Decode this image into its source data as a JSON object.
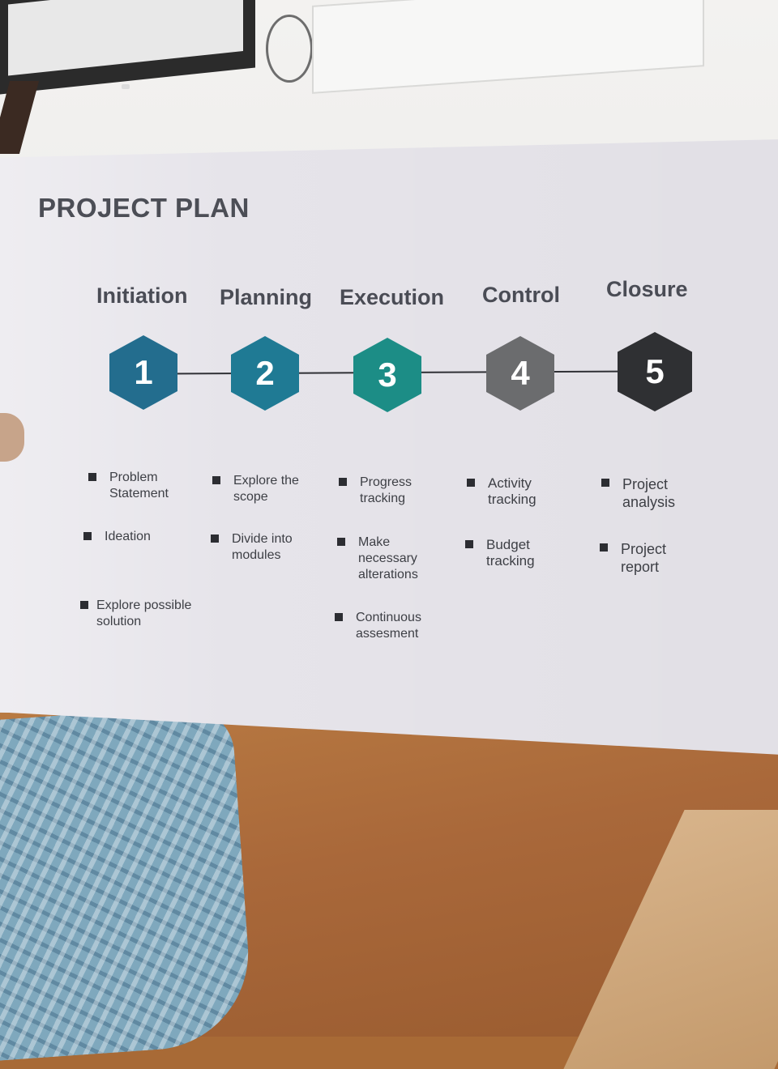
{
  "title": "PROJECT PLAN",
  "phases": [
    {
      "label": "Initiation",
      "number": "1",
      "color": "#236d8e",
      "items": [
        "Problem Statement",
        "Ideation",
        "Explore possible solution"
      ]
    },
    {
      "label": "Planning",
      "number": "2",
      "color": "#1f7a94",
      "items": [
        "Explore the scope",
        "Divide into modules"
      ]
    },
    {
      "label": "Execution",
      "number": "3",
      "color": "#1c8d86",
      "items": [
        "Progress tracking",
        "Make necessary alterations",
        "Continuous assesment"
      ]
    },
    {
      "label": "Control",
      "number": "4",
      "color": "#6b6c6e",
      "items": [
        "Activity tracking",
        "Budget tracking"
      ]
    },
    {
      "label": "Closure",
      "number": "5",
      "color": "#2f3033",
      "items": [
        "Project analysis",
        "Project report"
      ]
    }
  ]
}
